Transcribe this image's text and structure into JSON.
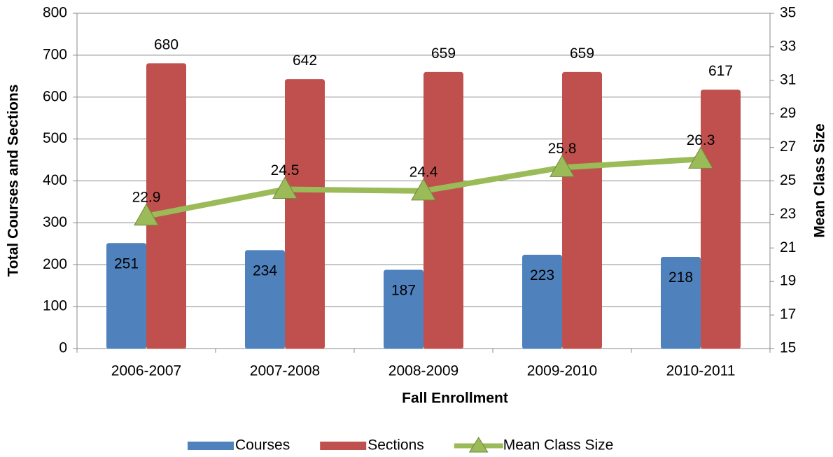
{
  "chart_data": {
    "type": "bar",
    "x_label": "Fall Enrollment",
    "y_label": "Total Courses and Sections",
    "y2_label": "Mean Class Size",
    "categories": [
      "2006-2007",
      "2007-2008",
      "2008-2009",
      "2009-2010",
      "2010-2011"
    ],
    "series": [
      {
        "name": "Courses",
        "color": "#4f81bd",
        "values": [
          251,
          234,
          187,
          223,
          218
        ]
      },
      {
        "name": "Sections",
        "color": "#c0504d",
        "values": [
          680,
          642,
          659,
          659,
          617
        ]
      },
      {
        "name": "Mean Class Size",
        "color": "#9bbb59",
        "type": "line",
        "axis": "y2",
        "values": [
          22.9,
          24.5,
          24.4,
          25.8,
          26.3
        ]
      }
    ],
    "ylim": [
      0,
      800
    ],
    "yticks": [
      0,
      100,
      200,
      300,
      400,
      500,
      600,
      700,
      800
    ],
    "y2lim": [
      15,
      35
    ],
    "y2ticks": [
      15,
      17,
      19,
      21,
      23,
      25,
      27,
      29,
      31,
      33,
      35
    ],
    "grid": true,
    "legend": "bottom"
  }
}
